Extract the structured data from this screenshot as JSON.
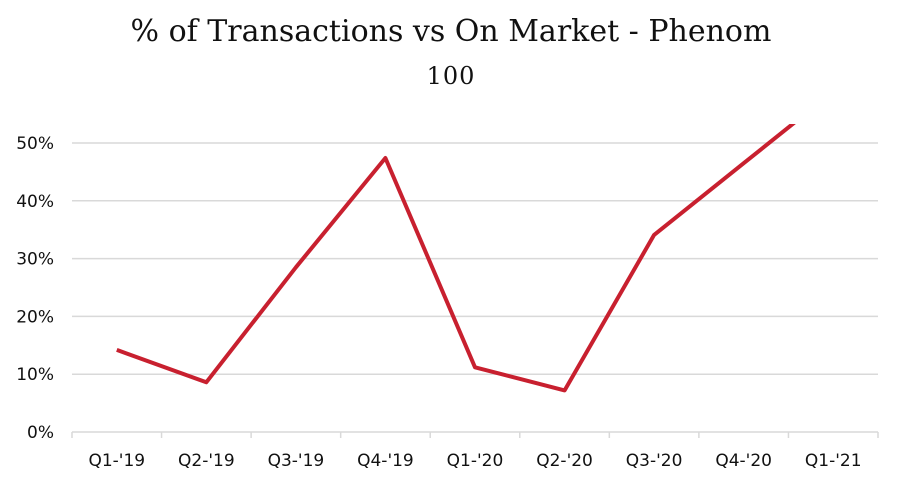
{
  "chart_data": {
    "type": "line",
    "title": "% of Transactions vs On Market - Phenom",
    "subtitle": "100",
    "categories": [
      "Q1-'19",
      "Q2-'19",
      "Q3-'19",
      "Q4-'19",
      "Q1-'20",
      "Q2-'20",
      "Q3-'20",
      "Q4-'20",
      "Q1-'21"
    ],
    "series": [
      {
        "values": [
          14.2,
          8.6,
          28.5,
          47.4,
          11.2,
          7.2,
          34.1,
          46.5,
          null
        ],
        "color": "#c8202f"
      }
    ],
    "y_ticks": [
      "0%",
      "10%",
      "20%",
      "30%",
      "40%",
      "50%"
    ],
    "ylim": [
      0,
      54
    ],
    "grid": true,
    "last_point_clipped_at_top": true
  }
}
